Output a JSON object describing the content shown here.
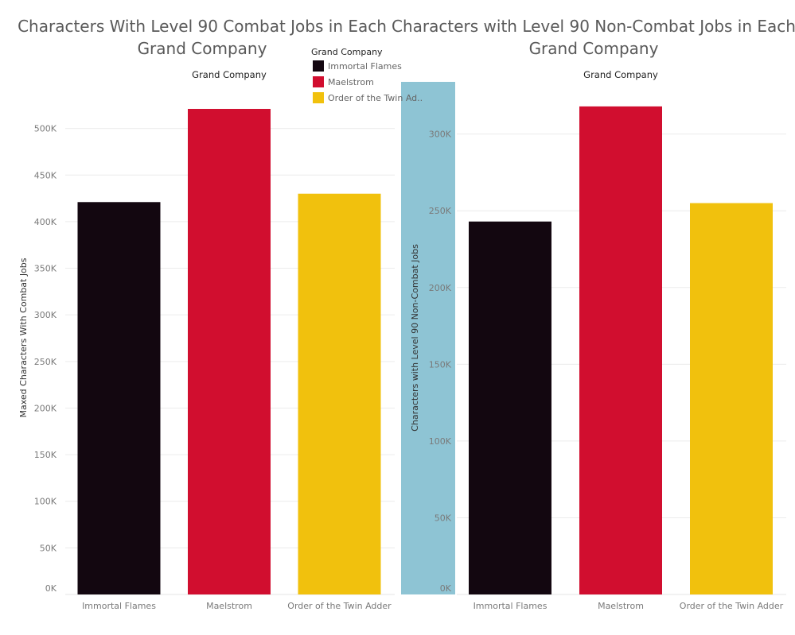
{
  "chart_data": [
    {
      "type": "bar",
      "title_lines": [
        "Characters With Level 90 Combat Jobs in Each",
        "Grand Company"
      ],
      "column_header": "Grand Company",
      "ylabel": "Maxed Characters With Combat Jobs",
      "categories": [
        "Immortal Flames",
        "Maelstrom",
        "Order of the Twin Adder"
      ],
      "values": [
        421000,
        521000,
        430000
      ],
      "ylim": [
        0,
        550000
      ],
      "yticks": [
        0,
        50000,
        100000,
        150000,
        200000,
        250000,
        300000,
        350000,
        400000,
        450000,
        500000
      ],
      "ytick_labels": [
        "0K",
        "50K",
        "100K",
        "150K",
        "200K",
        "250K",
        "300K",
        "350K",
        "400K",
        "450K",
        "500K"
      ],
      "colors": [
        "#130710",
        "#d10e2f",
        "#f1c10d"
      ],
      "grid": true
    },
    {
      "type": "bar",
      "title_lines": [
        "Characters with Level 90 Non-Combat Jobs in Each",
        "Grand Company"
      ],
      "column_header": "Grand Company",
      "ylabel": "Characters with Level 90 Non-Combat Jobs",
      "categories": [
        "Immortal Flames",
        "Maelstrom",
        "Order of the Twin Adder"
      ],
      "values": [
        243000,
        318000,
        255000
      ],
      "ylim": [
        0,
        334000
      ],
      "yticks": [
        0,
        50000,
        100000,
        150000,
        200000,
        250000,
        300000
      ],
      "ytick_labels": [
        "0K",
        "50K",
        "100K",
        "150K",
        "200K",
        "250K",
        "300K"
      ],
      "colors": [
        "#130710",
        "#d10e2f",
        "#f1c10d"
      ],
      "grid": true
    }
  ],
  "legend": {
    "title": "Grand Company",
    "placement": "top-center",
    "items": [
      {
        "label": "Immortal Flames",
        "color": "#130710"
      },
      {
        "label": "Maelstrom",
        "color": "#d10e2f"
      },
      {
        "label": "Order of the Twin Ad..",
        "color": "#f1c10d"
      }
    ]
  },
  "axis_band_color": "#8ec4d4"
}
